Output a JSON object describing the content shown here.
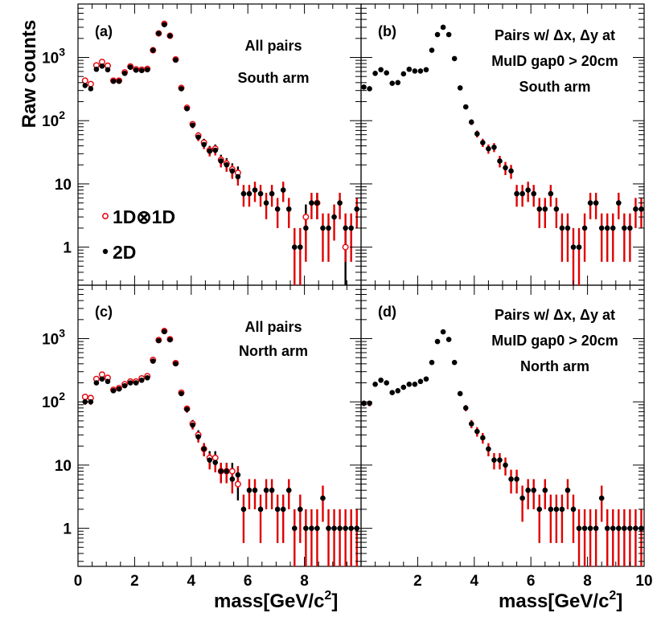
{
  "figure": {
    "ylabel": "Raw counts",
    "xlabel_main": "mass[GeV/c",
    "xlabel_sup": "2",
    "xlabel_end": "]",
    "x_ticks": [
      "0",
      "2",
      "4",
      "6",
      "8",
      "10"
    ],
    "y_ticks": [
      "1",
      "10",
      "10",
      "10"
    ],
    "y_tick_exps": [
      "",
      "",
      "2",
      "3"
    ],
    "legend": {
      "open_label": "1D⊗1D",
      "filled_label": "2D"
    },
    "colors": {
      "open": "#e8000b",
      "filled": "#000000",
      "error": "#e00000"
    }
  },
  "chart_data": [
    {
      "id": "a",
      "type": "scatter",
      "tag": "(a)",
      "title_lines": [
        "All pairs",
        "South arm"
      ],
      "xlim": [
        0,
        10
      ],
      "ylim": [
        0.25,
        7000
      ],
      "yscale": "log",
      "series": [
        {
          "name": "1D⊗1D",
          "marker": "open",
          "x": [
            0.25,
            0.45,
            0.65,
            0.85,
            1.05,
            1.25,
            1.45,
            1.65,
            1.85,
            2.05,
            2.25,
            2.45,
            2.65,
            2.85,
            3.05,
            3.25,
            3.45,
            3.65,
            3.85,
            4.05,
            4.25,
            4.45,
            4.65,
            4.85,
            5.05,
            5.25,
            5.45,
            5.65,
            8.05,
            8.45,
            9.45
          ],
          "y": [
            430,
            380,
            750,
            850,
            740,
            430,
            430,
            580,
            720,
            650,
            640,
            660,
            1300,
            2400,
            3400,
            2200,
            930,
            330,
            160,
            88,
            58,
            45,
            34,
            36,
            24,
            21,
            17,
            15,
            3,
            5,
            1
          ]
        },
        {
          "name": "2D",
          "marker": "filled",
          "x": [
            0.25,
            0.45,
            0.65,
            0.85,
            1.05,
            1.25,
            1.45,
            1.65,
            1.85,
            2.05,
            2.25,
            2.45,
            2.65,
            2.85,
            3.05,
            3.25,
            3.45,
            3.65,
            3.85,
            4.05,
            4.25,
            4.45,
            4.65,
            4.85,
            5.05,
            5.25,
            5.45,
            5.65,
            5.85,
            6.05,
            6.25,
            6.45,
            6.65,
            6.85,
            7.05,
            7.25,
            7.45,
            7.65,
            7.85,
            8.05,
            8.25,
            8.45,
            8.65,
            8.85,
            9.05,
            9.25,
            9.45,
            9.65,
            9.85
          ],
          "y": [
            360,
            320,
            650,
            730,
            640,
            420,
            420,
            560,
            700,
            630,
            620,
            640,
            1300,
            2400,
            3300,
            2200,
            910,
            320,
            155,
            85,
            55,
            42,
            33,
            34,
            23,
            20,
            16,
            13,
            7,
            7,
            8,
            7,
            5,
            7,
            4,
            8,
            4,
            1,
            1,
            2,
            5,
            5,
            2,
            2,
            3,
            5,
            2,
            2,
            4
          ]
        }
      ]
    },
    {
      "id": "b",
      "type": "scatter",
      "tag": "(b)",
      "title_lines": [
        "Pairs w/  Δx, Δy at",
        "MuID gap0 > 20cm",
        "South arm"
      ],
      "xlim": [
        0,
        10
      ],
      "ylim": [
        0.25,
        7000
      ],
      "yscale": "log",
      "series": [
        {
          "name": "2D",
          "marker": "filled",
          "x": [
            0.1,
            0.3,
            0.5,
            0.7,
            0.9,
            1.1,
            1.3,
            1.5,
            1.7,
            1.9,
            2.1,
            2.3,
            2.5,
            2.7,
            2.9,
            3.1,
            3.3,
            3.5,
            3.7,
            3.9,
            4.1,
            4.3,
            4.5,
            4.7,
            4.9,
            5.1,
            5.3,
            5.5,
            5.7,
            5.9,
            6.1,
            6.3,
            6.5,
            6.7,
            6.9,
            7.1,
            7.3,
            7.5,
            7.7,
            7.9,
            8.1,
            8.3,
            8.5,
            8.7,
            8.9,
            9.1,
            9.3,
            9.5,
            9.7,
            9.9
          ],
          "y": [
            340,
            320,
            560,
            640,
            570,
            390,
            400,
            550,
            650,
            610,
            610,
            640,
            1300,
            2300,
            3000,
            2300,
            960,
            330,
            165,
            95,
            62,
            45,
            36,
            38,
            23,
            18,
            16,
            7,
            7,
            8,
            7,
            4,
            4,
            7,
            4,
            2,
            2,
            1,
            1,
            2,
            5,
            5,
            2,
            2,
            2,
            5,
            2,
            2,
            4,
            4
          ]
        }
      ]
    },
    {
      "id": "c",
      "type": "scatter",
      "tag": "(c)",
      "title_lines": [
        "All pairs",
        "North arm"
      ],
      "xlim": [
        0,
        10
      ],
      "ylim": [
        0.25,
        7000
      ],
      "yscale": "log",
      "series": [
        {
          "name": "1D⊗1D",
          "marker": "open",
          "x": [
            0.25,
            0.45,
            0.65,
            0.85,
            1.05,
            1.25,
            1.45,
            1.65,
            1.85,
            2.05,
            2.25,
            2.45,
            2.65,
            2.85,
            3.05,
            3.25,
            3.45,
            3.65,
            3.85,
            4.05,
            4.25,
            4.45,
            4.65,
            4.85,
            5.05,
            5.25,
            5.45,
            5.65
          ],
          "y": [
            120,
            115,
            230,
            270,
            240,
            155,
            165,
            190,
            210,
            210,
            235,
            255,
            460,
            950,
            1320,
            980,
            410,
            140,
            78,
            45,
            30,
            18,
            13,
            13,
            8,
            8,
            8,
            5
          ]
        },
        {
          "name": "2D",
          "marker": "filled",
          "x": [
            0.25,
            0.45,
            0.65,
            0.85,
            1.05,
            1.25,
            1.45,
            1.65,
            1.85,
            2.05,
            2.25,
            2.45,
            2.65,
            2.85,
            3.05,
            3.25,
            3.45,
            3.65,
            3.85,
            4.05,
            4.25,
            4.45,
            4.65,
            4.85,
            5.05,
            5.25,
            5.45,
            5.65,
            5.85,
            6.05,
            6.25,
            6.45,
            6.65,
            6.85,
            7.05,
            7.25,
            7.45,
            7.65,
            7.85,
            8.05,
            8.25,
            8.45,
            8.65,
            8.85,
            9.05,
            9.25,
            9.45,
            9.65,
            9.85
          ],
          "y": [
            100,
            100,
            200,
            230,
            210,
            150,
            160,
            180,
            200,
            200,
            220,
            240,
            440,
            930,
            1290,
            960,
            400,
            135,
            76,
            43,
            28,
            18,
            12,
            11,
            8,
            8,
            6,
            7,
            2,
            4,
            4,
            2,
            4,
            4,
            2,
            2,
            4,
            1,
            2,
            1,
            1,
            1,
            3,
            1,
            1,
            1,
            1,
            1,
            1
          ]
        }
      ]
    },
    {
      "id": "d",
      "type": "scatter",
      "tag": "(d)",
      "title_lines": [
        "Pairs w/  Δx, Δy at",
        "MuID gap0 > 20cm",
        "North arm"
      ],
      "xlim": [
        0,
        10
      ],
      "ylim": [
        0.25,
        7000
      ],
      "yscale": "log",
      "series": [
        {
          "name": "2D",
          "marker": "filled",
          "x": [
            0.1,
            0.3,
            0.5,
            0.7,
            0.9,
            1.1,
            1.3,
            1.5,
            1.7,
            1.9,
            2.1,
            2.3,
            2.5,
            2.7,
            2.9,
            3.1,
            3.3,
            3.5,
            3.7,
            3.9,
            4.1,
            4.3,
            4.5,
            4.7,
            4.9,
            5.1,
            5.3,
            5.5,
            5.7,
            5.9,
            6.1,
            6.3,
            6.5,
            6.7,
            6.9,
            7.1,
            7.3,
            7.5,
            7.7,
            7.9,
            8.1,
            8.3,
            8.5,
            8.7,
            8.9,
            9.1,
            9.3,
            9.5,
            9.7,
            9.9
          ],
          "y": [
            95,
            95,
            190,
            220,
            200,
            140,
            150,
            170,
            190,
            190,
            210,
            230,
            420,
            900,
            1280,
            970,
            420,
            135,
            80,
            45,
            34,
            27,
            18,
            12,
            12,
            10,
            6,
            6,
            3,
            4,
            4,
            2,
            4,
            2,
            2,
            2,
            4,
            2,
            1,
            1,
            1,
            1,
            3,
            1,
            1,
            1,
            1,
            1,
            1,
            1
          ]
        }
      ]
    }
  ]
}
